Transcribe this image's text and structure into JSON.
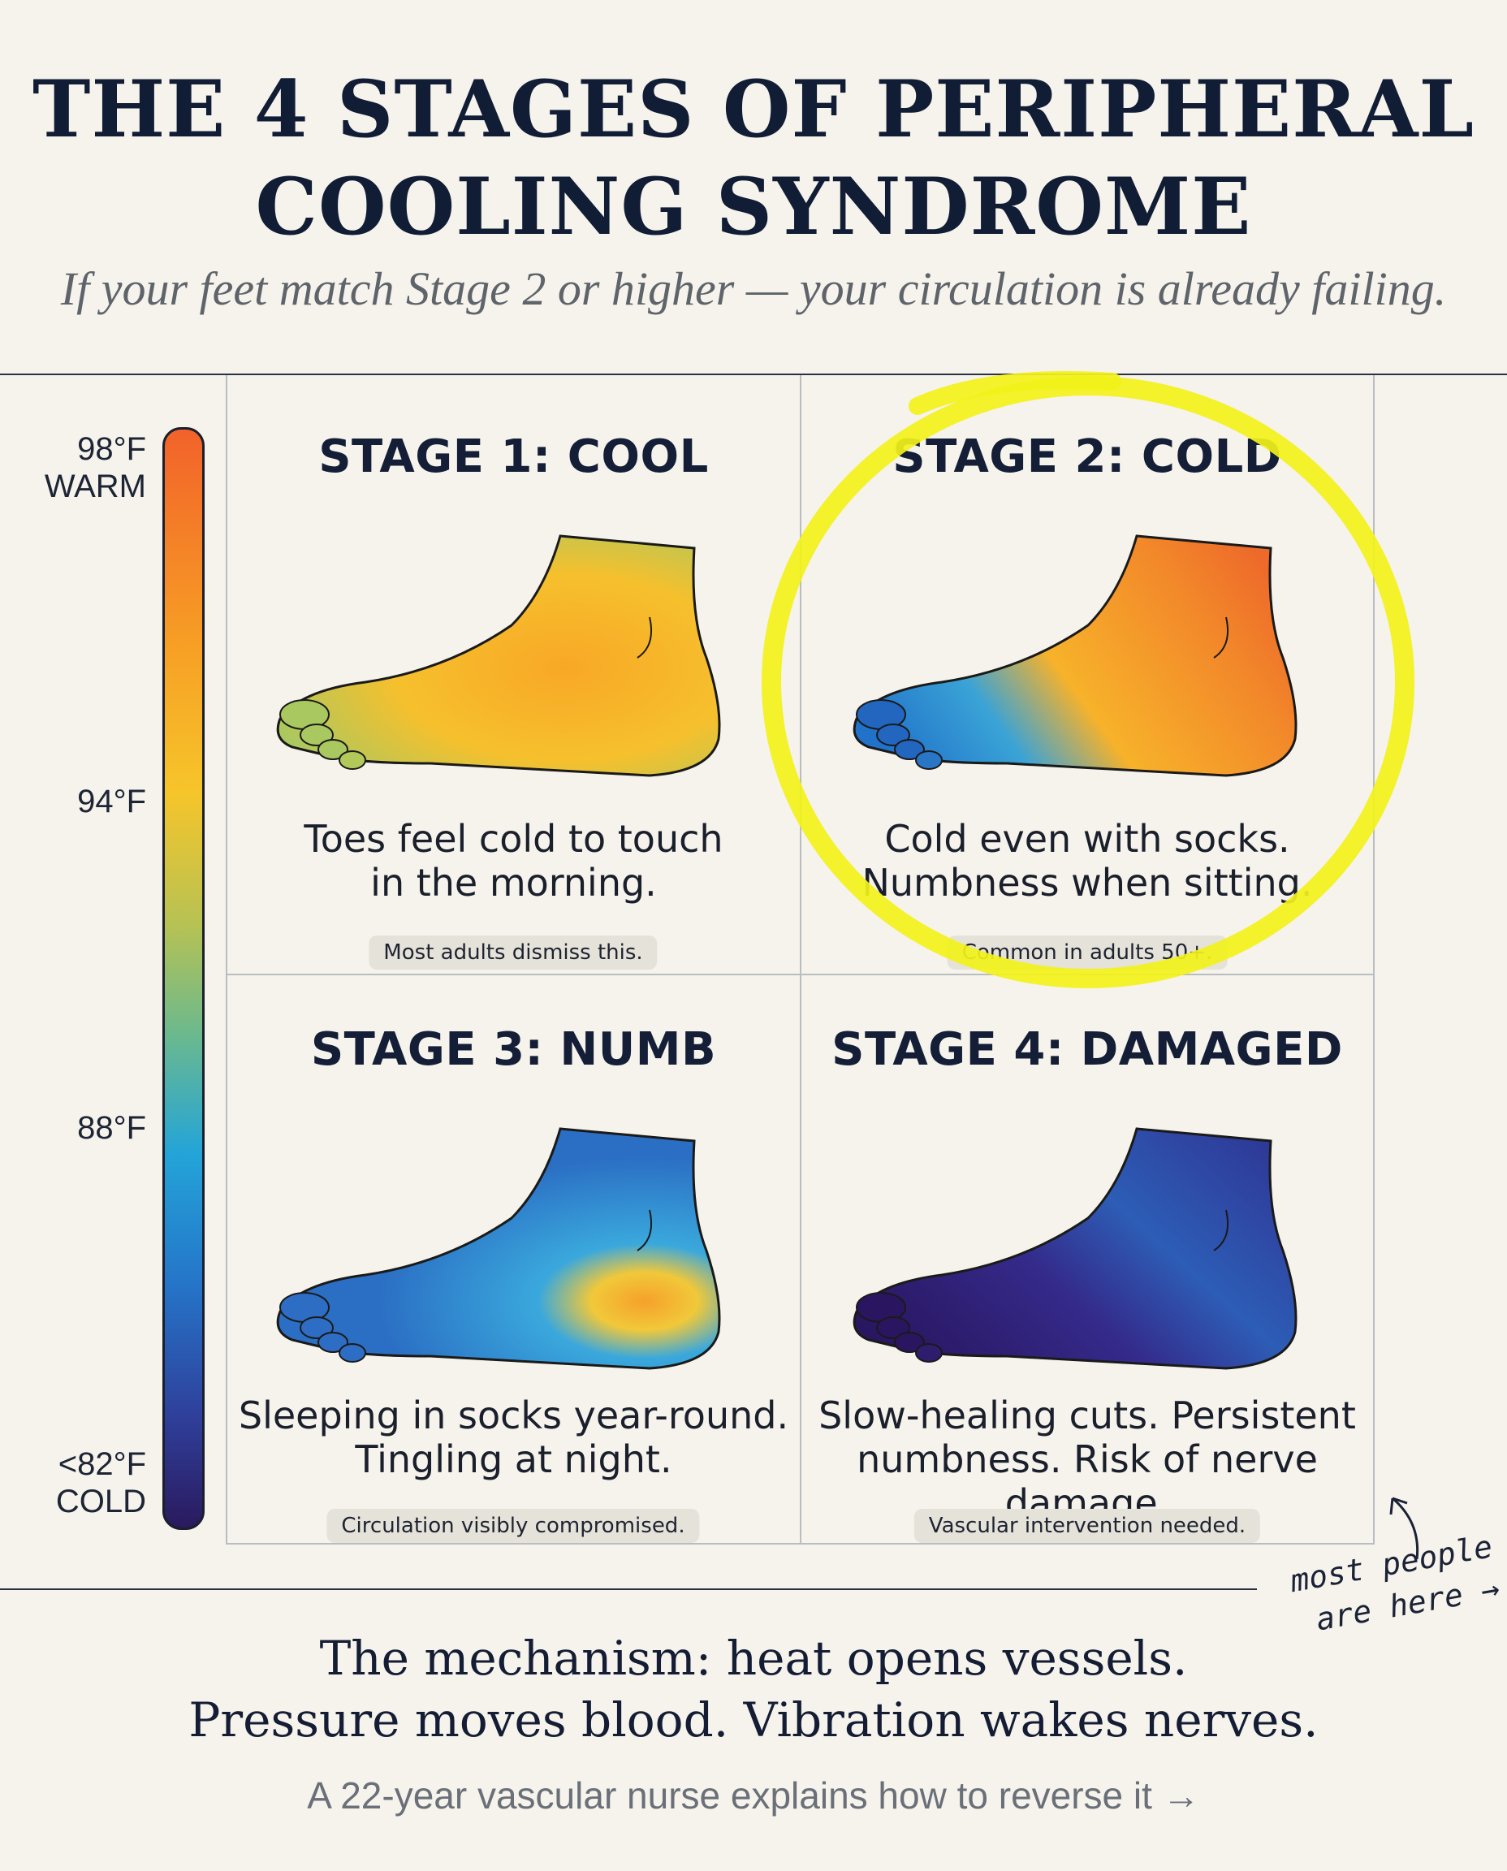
{
  "title_line1": "THE 4 STAGES OF PERIPHERAL",
  "title_line2": "COOLING SYNDROME",
  "subtitle": "If your feet match Stage 2 or higher — your circulation is already failing.",
  "scale": {
    "top_temp": "98°F",
    "top_word": "WARM",
    "mid_temp": "94°F",
    "low_temp": "88°F",
    "bottom_temp": "<82°F",
    "bottom_word": "COLD"
  },
  "stages": [
    {
      "title": "STAGE 1: COOL",
      "desc": "Toes feel cold to touch\nin the morning.",
      "badge": "Most adults dismiss this."
    },
    {
      "title": "STAGE 2: COLD",
      "desc": "Cold even with socks.\nNumbness when sitting.",
      "badge": "Common in adults 50+."
    },
    {
      "title": "STAGE 3: NUMB",
      "desc": "Sleeping in socks year-round.\nTingling at night.",
      "badge": "Circulation visibly compromised."
    },
    {
      "title": "STAGE 4: DAMAGED",
      "desc": "Slow-healing cuts. Persistent\nnumbness. Risk of nerve damage.",
      "badge": "Vascular intervention needed."
    }
  ],
  "annotation": "most people\n are here →",
  "mechanism_line1": "The mechanism: heat opens vessels.",
  "mechanism_line2": "Pressure moves blood. Vibration wakes nerves.",
  "cta": "A 22-year vascular nurse explains how to reverse it →",
  "colors": {
    "highlight": "#f2f21a",
    "ink": "#141e36",
    "background": "#f5f3ec"
  }
}
